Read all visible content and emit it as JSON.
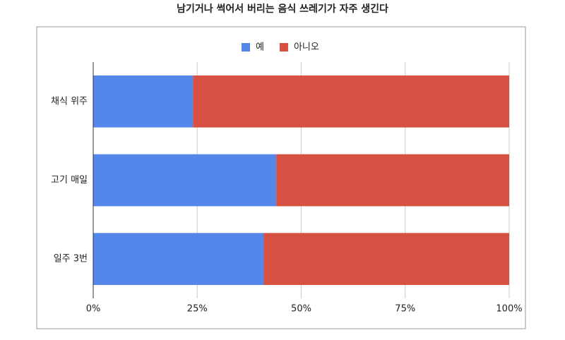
{
  "chart_data": {
    "type": "bar",
    "orientation": "horizontal",
    "stacked": true,
    "title": "남기거나 썩어서 버리는 음식 쓰레기가 자주 생긴다",
    "categories": [
      "채식 위주",
      "고기 매일",
      "일주 3번"
    ],
    "series": [
      {
        "name": "예",
        "color": "#5586ea",
        "values": [
          24,
          44,
          41
        ]
      },
      {
        "name": "아니오",
        "color": "#d65141",
        "values": [
          76,
          56,
          59
        ]
      }
    ],
    "xlim": [
      0,
      100
    ],
    "xticks": [
      {
        "value": 0,
        "label": "0%"
      },
      {
        "value": 25,
        "label": "25%"
      },
      {
        "value": 50,
        "label": "50%"
      },
      {
        "value": 75,
        "label": "75%"
      },
      {
        "value": 100,
        "label": "100%"
      }
    ],
    "grid": true,
    "legend": "top"
  }
}
